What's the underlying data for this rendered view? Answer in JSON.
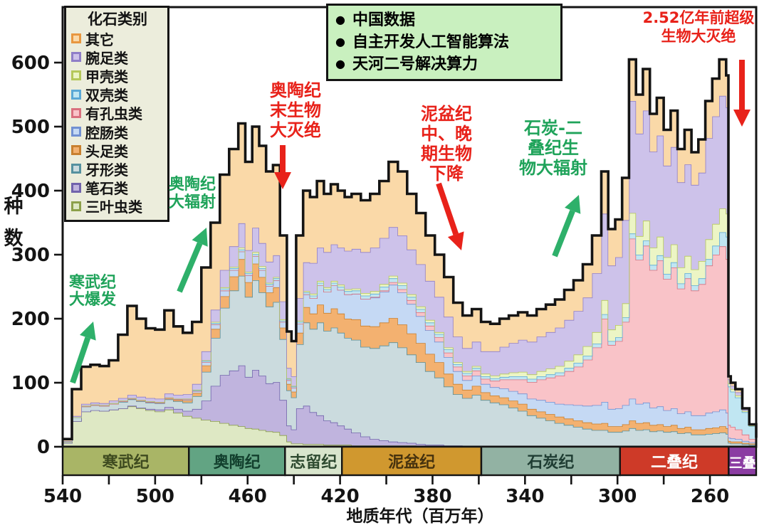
{
  "chart_data": {
    "type": "area",
    "stacked": true,
    "x_label": "地质年代（百万年）",
    "y_label": "种数",
    "x_range": [
      540,
      240
    ],
    "y_range": [
      0,
      600
    ],
    "x_major_ticks": [
      540,
      500,
      460,
      420,
      380,
      340,
      300,
      260
    ],
    "x_minor_tick_step": 20,
    "y_ticks": [
      0,
      100,
      200,
      300,
      400,
      500,
      600
    ],
    "outline_color": "#141414",
    "ages": [
      540,
      536,
      532,
      528,
      524,
      520,
      516,
      512,
      508,
      504,
      500,
      496,
      492,
      488,
      484,
      480,
      476,
      472,
      468,
      464,
      461,
      458,
      455,
      452,
      449,
      446,
      443,
      441,
      439,
      436,
      433,
      430,
      427,
      424,
      421,
      418,
      415,
      411,
      407,
      403,
      399,
      395,
      391,
      387,
      383,
      379,
      375,
      371,
      367,
      363,
      359,
      355,
      351,
      347,
      343,
      339,
      335,
      331,
      327,
      323,
      319,
      315,
      311,
      307,
      304,
      301,
      298,
      295,
      292,
      289,
      286,
      283,
      280,
      277,
      274,
      271,
      268,
      265,
      262,
      259,
      256,
      253,
      252,
      251,
      249,
      246,
      243,
      240
    ],
    "series": [
      {
        "id": "trilobites",
        "label": "三叶虫类",
        "fill": "#DEE8C4",
        "stroke": "#8CA04A",
        "values": [
          6,
          40,
          55,
          57,
          56,
          58,
          60,
          63,
          60,
          57,
          55,
          58,
          53,
          48,
          45,
          42,
          40,
          37,
          34,
          32,
          29,
          28,
          26,
          24,
          23,
          18,
          8,
          5,
          5,
          4,
          4,
          4,
          3,
          3,
          3,
          3,
          2,
          2,
          2,
          2,
          2,
          2,
          2,
          1,
          1,
          1,
          1,
          1,
          1,
          1,
          1,
          1,
          1,
          1,
          1,
          1,
          1,
          1,
          1,
          1,
          1,
          1,
          1,
          1,
          1,
          1,
          1,
          1,
          1,
          1,
          1,
          1,
          1,
          1,
          1,
          1,
          0,
          0,
          0,
          0,
          0,
          0,
          0,
          0,
          0,
          0,
          0,
          0
        ]
      },
      {
        "id": "graptolites",
        "label": "笔石类",
        "fill": "#C0B4DE",
        "stroke": "#7163AC",
        "values": [
          0,
          0,
          0,
          0,
          0,
          0,
          0,
          1,
          1,
          2,
          3,
          4,
          6,
          8,
          14,
          30,
          55,
          75,
          85,
          95,
          80,
          92,
          85,
          75,
          78,
          55,
          25,
          22,
          55,
          60,
          50,
          45,
          38,
          35,
          30,
          25,
          20,
          14,
          10,
          8,
          6,
          5,
          4,
          3,
          2,
          2,
          1,
          1,
          0,
          0,
          0,
          0,
          0,
          0,
          0,
          0,
          0,
          0,
          0,
          0,
          0,
          0,
          0,
          0,
          0,
          0,
          0,
          0,
          0,
          0,
          0,
          0,
          0,
          0,
          0,
          0,
          0,
          0,
          0,
          0,
          0,
          0,
          0,
          0,
          0,
          0,
          0,
          0
        ]
      },
      {
        "id": "conodonts",
        "label": "牙形类",
        "fill": "#CBDBDE",
        "stroke": "#55919F",
        "values": [
          2,
          6,
          8,
          8,
          8,
          9,
          10,
          10,
          10,
          10,
          10,
          12,
          12,
          13,
          20,
          45,
          75,
          105,
          125,
          140,
          125,
          140,
          130,
          120,
          125,
          95,
          55,
          50,
          100,
          130,
          130,
          145,
          140,
          148,
          145,
          142,
          145,
          140,
          142,
          148,
          155,
          148,
          138,
          128,
          115,
          105,
          92,
          80,
          75,
          80,
          72,
          68,
          65,
          60,
          55,
          48,
          44,
          40,
          36,
          33,
          30,
          27,
          25,
          25,
          22,
          22,
          24,
          28,
          25,
          26,
          23,
          24,
          22,
          23,
          20,
          21,
          19,
          19,
          20,
          21,
          22,
          20,
          6,
          5,
          5,
          4,
          3,
          2
        ]
      },
      {
        "id": "cephalopods",
        "label": "头足类",
        "fill": "#F3B170",
        "stroke": "#C8802F",
        "values": [
          0,
          0,
          0,
          0,
          0,
          0,
          1,
          1,
          1,
          1,
          1,
          2,
          2,
          3,
          5,
          10,
          14,
          18,
          22,
          26,
          23,
          26,
          24,
          22,
          23,
          18,
          10,
          9,
          18,
          24,
          24,
          28,
          28,
          30,
          30,
          30,
          32,
          33,
          34,
          36,
          38,
          36,
          33,
          30,
          27,
          24,
          20,
          16,
          13,
          14,
          12,
          11,
          11,
          11,
          11,
          10,
          10,
          10,
          10,
          10,
          10,
          10,
          10,
          11,
          9,
          9,
          10,
          12,
          11,
          11,
          10,
          10,
          9,
          10,
          8,
          9,
          8,
          8,
          9,
          9,
          10,
          9,
          3,
          3,
          3,
          2,
          2,
          1
        ]
      },
      {
        "id": "coelenterates",
        "label": "腔肠类",
        "fill": "#C5D9F4",
        "stroke": "#7291D2",
        "values": [
          0,
          0,
          0,
          0,
          0,
          0,
          0,
          0,
          0,
          0,
          0,
          0,
          1,
          2,
          3,
          5,
          7,
          9,
          10,
          12,
          11,
          12,
          11,
          10,
          11,
          9,
          6,
          6,
          14,
          20,
          24,
          30,
          33,
          36,
          37,
          38,
          40,
          42,
          45,
          48,
          52,
          50,
          46,
          42,
          37,
          32,
          26,
          20,
          15,
          16,
          13,
          13,
          14,
          15,
          16,
          16,
          18,
          19,
          20,
          22,
          24,
          26,
          29,
          33,
          27,
          28,
          30,
          34,
          30,
          31,
          27,
          28,
          25,
          26,
          23,
          24,
          22,
          22,
          24,
          25,
          26,
          24,
          5,
          5,
          4,
          3,
          2,
          1
        ]
      },
      {
        "id": "foraminifera",
        "label": "有孔虫类",
        "fill": "#F9C3C8",
        "stroke": "#D9707E",
        "values": [
          0,
          0,
          0,
          0,
          0,
          0,
          0,
          0,
          0,
          0,
          0,
          0,
          0,
          0,
          0,
          0,
          0,
          0,
          0,
          0,
          0,
          0,
          0,
          0,
          0,
          0,
          0,
          0,
          0,
          0,
          0,
          0,
          0,
          0,
          0,
          0,
          0,
          0,
          1,
          2,
          4,
          5,
          6,
          6,
          7,
          7,
          7,
          7,
          7,
          8,
          8,
          10,
          14,
          18,
          22,
          26,
          32,
          38,
          44,
          52,
          60,
          72,
          90,
          130,
          100,
          105,
          130,
          250,
          225,
          245,
          215,
          228,
          205,
          220,
          195,
          208,
          195,
          205,
          230,
          245,
          255,
          240,
          20,
          18,
          15,
          10,
          5,
          2
        ]
      },
      {
        "id": "bivalves",
        "label": "双壳类",
        "fill": "#C0E6F2",
        "stroke": "#5AA8D6",
        "values": [
          0,
          0,
          1,
          1,
          1,
          1,
          1,
          1,
          1,
          1,
          1,
          1,
          1,
          1,
          1,
          2,
          2,
          3,
          3,
          3,
          3,
          3,
          3,
          3,
          3,
          2,
          2,
          2,
          3,
          3,
          4,
          4,
          4,
          4,
          5,
          5,
          5,
          5,
          5,
          6,
          6,
          6,
          5,
          5,
          5,
          5,
          5,
          4,
          4,
          4,
          4,
          4,
          4,
          5,
          5,
          5,
          5,
          5,
          5,
          5,
          6,
          6,
          6,
          7,
          6,
          6,
          7,
          8,
          8,
          8,
          8,
          8,
          8,
          8,
          8,
          8,
          8,
          9,
          10,
          14,
          22,
          35,
          60,
          55,
          50,
          35,
          20,
          8
        ]
      },
      {
        "id": "crustaceans",
        "label": "甲壳类",
        "fill": "#ECF5C5",
        "stroke": "#B5C85A",
        "values": [
          0,
          0,
          0,
          0,
          0,
          0,
          0,
          0,
          0,
          0,
          0,
          0,
          0,
          0,
          1,
          1,
          2,
          2,
          2,
          3,
          2,
          3,
          3,
          2,
          2,
          2,
          1,
          1,
          2,
          2,
          3,
          3,
          3,
          3,
          3,
          3,
          3,
          4,
          4,
          4,
          4,
          4,
          4,
          4,
          4,
          3,
          3,
          3,
          3,
          3,
          4,
          4,
          5,
          6,
          7,
          7,
          8,
          9,
          10,
          11,
          13,
          15,
          18,
          22,
          18,
          19,
          22,
          32,
          29,
          31,
          27,
          29,
          26,
          28,
          25,
          27,
          25,
          27,
          31,
          34,
          37,
          36,
          5,
          4,
          3,
          2,
          1,
          0
        ]
      },
      {
        "id": "brachiopods",
        "label": "腕足类",
        "fill": "#CDC2EA",
        "stroke": "#8F7EC8",
        "values": [
          1,
          2,
          3,
          3,
          3,
          4,
          4,
          5,
          5,
          5,
          5,
          6,
          6,
          7,
          9,
          14,
          19,
          27,
          32,
          38,
          34,
          38,
          36,
          33,
          34,
          28,
          16,
          15,
          35,
          45,
          48,
          52,
          55,
          57,
          58,
          60,
          62,
          64,
          68,
          72,
          76,
          74,
          70,
          66,
          61,
          55,
          48,
          40,
          36,
          38,
          35,
          38,
          42,
          46,
          50,
          51,
          54,
          57,
          60,
          64,
          68,
          76,
          92,
          135,
          100,
          106,
          130,
          175,
          160,
          172,
          150,
          158,
          143,
          152,
          133,
          143,
          132,
          138,
          158,
          168,
          176,
          166,
          6,
          5,
          5,
          2,
          1,
          0
        ]
      },
      {
        "id": "others",
        "label": "其它",
        "fill": "#FAD9A8",
        "stroke": "#E8973F",
        "values": [
          3,
          42,
          58,
          59,
          58,
          63,
          99,
          139,
          122,
          109,
          108,
          130,
          107,
          96,
          97,
          131,
          136,
          149,
          152,
          156,
          138,
          158,
          152,
          141,
          141,
          103,
          57,
          55,
          98,
          112,
          103,
          104,
          91,
          94,
          89,
          84,
          86,
          81,
          84,
          89,
          102,
          100,
          87,
          80,
          71,
          66,
          62,
          53,
          51,
          51,
          46,
          43,
          44,
          43,
          43,
          41,
          43,
          43,
          44,
          47,
          48,
          52,
          59,
          66,
          57,
          59,
          66,
          65,
          61,
          65,
          59,
          59,
          56,
          57,
          52,
          54,
          51,
          52,
          58,
          59,
          57,
          50,
          5,
          5,
          5,
          2,
          1,
          0
        ]
      }
    ],
    "periods": [
      {
        "name": "寒武纪",
        "start": 540,
        "end": 485.4,
        "fill": "#A9B566",
        "text": "#3E4A1F"
      },
      {
        "name": "奥陶纪",
        "start": 485.4,
        "end": 443.8,
        "fill": "#62A483",
        "text": "#123F2D"
      },
      {
        "name": "志留纪",
        "start": 443.8,
        "end": 419.2,
        "fill": "#D8E5CC",
        "text": "#2E4A30"
      },
      {
        "name": "泥盆纪",
        "start": 419.2,
        "end": 358.9,
        "fill": "#D0982F",
        "text": "#46320E"
      },
      {
        "name": "石炭纪",
        "start": 358.9,
        "end": 298.9,
        "fill": "#92B2A3",
        "text": "#1F3D33"
      },
      {
        "name": "二叠纪",
        "start": 298.9,
        "end": 251.9,
        "fill": "#CE3A28",
        "text": "#FFFFFF"
      },
      {
        "name": "三叠",
        "start": 251.9,
        "end": 240,
        "fill": "#8B3CA2",
        "text": "#FFFFFF"
      }
    ]
  },
  "legend": {
    "title": "化石类别",
    "items": [
      {
        "label": "其它",
        "series": "others"
      },
      {
        "label": "腕足类",
        "series": "brachiopods"
      },
      {
        "label": "甲壳类",
        "series": "crustaceans"
      },
      {
        "label": "双壳类",
        "series": "bivalves"
      },
      {
        "label": "有孔虫类",
        "series": "foraminifera"
      },
      {
        "label": "腔肠类",
        "series": "coelenterates"
      },
      {
        "label": "头足类",
        "series": "cephalopods"
      },
      {
        "label": "牙形类",
        "series": "conodonts"
      },
      {
        "label": "笔石类",
        "series": "graptolites"
      },
      {
        "label": "三叶虫类",
        "series": "trilobites"
      }
    ]
  },
  "info_box": {
    "bullet": "●",
    "lines": [
      "中国数据",
      "自主开发人工智能算法",
      "天河二号解决算力"
    ]
  },
  "annotations": [
    {
      "id": "cambrian-explosion",
      "color": "green",
      "lines": [
        "寒武纪",
        "大爆发"
      ]
    },
    {
      "id": "ordovician-radiation",
      "color": "green",
      "lines": [
        "奥陶纪",
        "大辐射"
      ]
    },
    {
      "id": "end-ordovician-extinction",
      "color": "red",
      "lines": [
        "奥陶纪",
        "末生物",
        "大灭绝"
      ]
    },
    {
      "id": "devonian-decline",
      "color": "red",
      "lines": [
        "泥盆纪",
        "中、晚",
        "期生物",
        "下降"
      ]
    },
    {
      "id": "carboniferous-permian-radiation",
      "color": "green",
      "lines": [
        "石炭-二",
        "叠纪生",
        "物大辐射"
      ]
    },
    {
      "id": "end-permian-extinction",
      "color": "red",
      "lines": [
        "2.52亿年前超级",
        "生物大灭绝"
      ]
    }
  ],
  "colors": {
    "annotation_red": "#E8221A",
    "annotation_green": "#1FA35A",
    "arrow_green": "#2EB06A"
  }
}
